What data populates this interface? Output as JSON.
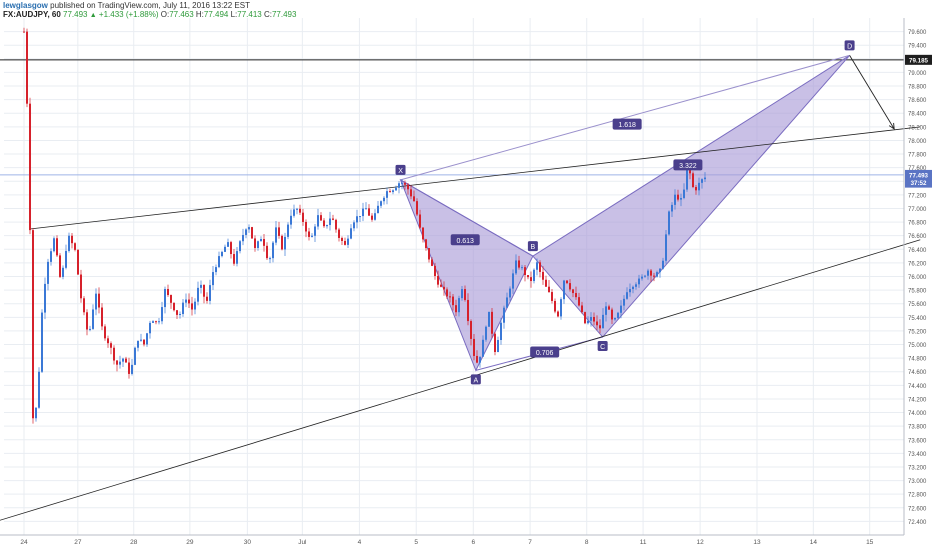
{
  "header": {
    "author": "lewglasgow",
    "published": "published on TradingView.com, July 11, 2016 13:22 EST",
    "symbol": "FX:AUDJPY, 60",
    "last": "77.493",
    "change": "+1.433 (+1.88%)",
    "open_label": "O:",
    "open": "77.463",
    "high_label": "H:",
    "high": "77.494",
    "low_label": "L:",
    "low": "77.413",
    "close_label": "C:",
    "close": "77.493",
    "change_arrow": "up-triangle-icon"
  },
  "colors": {
    "up_candle": "#3a78d6",
    "down_candle": "#d6212b",
    "pattern_fill": "#a89ad6",
    "pattern_label_bg": "#4a3f8c",
    "price_label_dark": "#1e1e1e",
    "price_label_blue": "#5a74c4",
    "grid": "#e9edf2",
    "trendline": "#222222"
  },
  "chart_data": {
    "type": "candlestick",
    "instrument": "AUDJPY",
    "interval": "60",
    "ylim": [
      72.2,
      79.8
    ],
    "y_ticks": [
      72.4,
      72.6,
      72.8,
      73.0,
      73.2,
      73.4,
      73.6,
      73.8,
      74.0,
      74.2,
      74.4,
      74.6,
      74.8,
      75.0,
      75.2,
      75.4,
      75.6,
      75.8,
      76.0,
      76.2,
      76.4,
      76.6,
      76.8,
      77.0,
      77.2,
      77.4,
      77.6,
      77.8,
      78.0,
      78.2,
      78.4,
      78.6,
      78.8,
      79.0,
      79.2,
      79.4,
      79.6
    ],
    "y_tick_labels": [
      "72.400",
      "72.600",
      "72.800",
      "73.000",
      "73.200",
      "73.400",
      "73.600",
      "73.800",
      "74.000",
      "74.200",
      "74.400",
      "74.600",
      "74.800",
      "75.000",
      "75.200",
      "75.400",
      "75.600",
      "75.800",
      "76.000",
      "76.200",
      "76.400",
      "76.600",
      "76.800",
      "77.000",
      "77.200",
      "77.400",
      "77.600",
      "77.800",
      "78.000",
      "78.200",
      "78.400",
      "78.600",
      "78.800",
      "79.000",
      "79.200",
      "79.400",
      "79.600"
    ],
    "x_ticks": [
      {
        "label": "24",
        "t": 0
      },
      {
        "label": "27",
        "t": 2.33
      },
      {
        "label": "28",
        "t": 4.75
      },
      {
        "label": "29",
        "t": 7.18
      },
      {
        "label": "30",
        "t": 9.67
      },
      {
        "label": "Jul",
        "t": 12.05
      },
      {
        "label": "4",
        "t": 14.52
      },
      {
        "label": "5",
        "t": 16.98
      },
      {
        "label": "6",
        "t": 19.45
      },
      {
        "label": "7",
        "t": 21.91
      },
      {
        "label": "8",
        "t": 24.36
      },
      {
        "label": "11",
        "t": 26.8
      },
      {
        "label": "12",
        "t": 29.27
      },
      {
        "label": "13",
        "t": 31.73
      },
      {
        "label": "14",
        "t": 34.17
      },
      {
        "label": "15",
        "t": 36.61
      }
    ],
    "price_labels": [
      {
        "text": "79.185",
        "value": 79.185,
        "style": "dark"
      },
      {
        "text": "77.493",
        "value": 77.493,
        "style": "blue"
      },
      {
        "text": "37:52",
        "value": 77.38,
        "style": "blue"
      }
    ],
    "horizontal_lines": [
      {
        "value": 79.185,
        "color": "#222222"
      },
      {
        "value": 77.493,
        "color": "#9fb4e6"
      }
    ],
    "pattern": {
      "name": "bearish bat / gartley",
      "points": [
        {
          "label": "X",
          "t": 16.3,
          "price": 77.42
        },
        {
          "label": "A",
          "t": 19.56,
          "price": 74.62
        },
        {
          "label": "B",
          "t": 22.03,
          "price": 76.3
        },
        {
          "label": "C",
          "t": 25.05,
          "price": 75.11
        },
        {
          "label": "D",
          "t": 35.74,
          "price": 79.25
        }
      ],
      "ratios": [
        {
          "text": "0.613",
          "t": 19.1,
          "price": 76.54
        },
        {
          "text": "0.706",
          "t": 22.54,
          "price": 74.89
        },
        {
          "text": "3.322",
          "t": 28.74,
          "price": 77.64
        },
        {
          "text": "1.618",
          "t": 26.11,
          "price": 78.24
        }
      ]
    },
    "trendlines": [
      {
        "from": {
          "t": 0.3,
          "price": 76.7
        },
        "to": {
          "t": 38.8,
          "price": 78.2
        }
      },
      {
        "from": {
          "t": -1.2,
          "price": 72.4
        },
        "to": {
          "t": 38.8,
          "price": 76.54
        }
      }
    ],
    "projection": {
      "from": {
        "t": 35.74,
        "price": 79.25
      },
      "to": {
        "t": 37.67,
        "price": 78.17
      }
    },
    "candle_path": [
      [
        0,
        79.6
      ],
      [
        0.2,
        78.0
      ],
      [
        0.4,
        73.7
      ],
      [
        0.6,
        74.3
      ],
      [
        0.8,
        75.6
      ],
      [
        1.0,
        76.2
      ],
      [
        1.3,
        76.55
      ],
      [
        1.6,
        75.9
      ],
      [
        1.9,
        76.6
      ],
      [
        2.2,
        76.4
      ],
      [
        2.5,
        75.6
      ],
      [
        2.8,
        75.1
      ],
      [
        3.1,
        75.8
      ],
      [
        3.4,
        75.2
      ],
      [
        3.7,
        75.0
      ],
      [
        4.0,
        74.7
      ],
      [
        4.3,
        74.8
      ],
      [
        4.6,
        74.55
      ],
      [
        4.9,
        75.1
      ],
      [
        5.2,
        75.0
      ],
      [
        5.5,
        75.4
      ],
      [
        5.8,
        75.3
      ],
      [
        6.1,
        75.8
      ],
      [
        6.4,
        75.6
      ],
      [
        6.7,
        75.4
      ],
      [
        7.0,
        75.7
      ],
      [
        7.3,
        75.5
      ],
      [
        7.6,
        75.9
      ],
      [
        7.9,
        75.6
      ],
      [
        8.2,
        76.1
      ],
      [
        8.5,
        76.3
      ],
      [
        8.8,
        76.5
      ],
      [
        9.1,
        76.2
      ],
      [
        9.4,
        76.55
      ],
      [
        9.7,
        76.8
      ],
      [
        10.0,
        76.4
      ],
      [
        10.3,
        76.6
      ],
      [
        10.6,
        76.2
      ],
      [
        10.9,
        76.7
      ],
      [
        11.2,
        76.4
      ],
      [
        11.5,
        76.9
      ],
      [
        11.8,
        77.0
      ],
      [
        12.1,
        76.8
      ],
      [
        12.4,
        76.5
      ],
      [
        12.7,
        76.9
      ],
      [
        13.0,
        76.7
      ],
      [
        13.3,
        76.9
      ],
      [
        13.6,
        76.6
      ],
      [
        13.9,
        76.45
      ],
      [
        14.2,
        76.8
      ],
      [
        14.5,
        76.9
      ],
      [
        14.8,
        77.0
      ],
      [
        15.1,
        76.8
      ],
      [
        15.4,
        77.1
      ],
      [
        15.7,
        77.25
      ],
      [
        16.0,
        77.3
      ],
      [
        16.3,
        77.4
      ],
      [
        16.6,
        77.3
      ],
      [
        16.9,
        77.1
      ],
      [
        17.2,
        76.6
      ],
      [
        17.5,
        76.3
      ],
      [
        17.8,
        76.0
      ],
      [
        18.1,
        75.8
      ],
      [
        18.4,
        75.7
      ],
      [
        18.7,
        75.5
      ],
      [
        19.0,
        75.9
      ],
      [
        19.3,
        75.2
      ],
      [
        19.56,
        74.7
      ],
      [
        19.8,
        74.9
      ],
      [
        20.1,
        75.5
      ],
      [
        20.4,
        74.9
      ],
      [
        20.7,
        75.4
      ],
      [
        21.0,
        75.8
      ],
      [
        21.3,
        76.2
      ],
      [
        21.6,
        76.1
      ],
      [
        21.9,
        75.9
      ],
      [
        22.2,
        76.2
      ],
      [
        22.5,
        75.9
      ],
      [
        22.8,
        75.7
      ],
      [
        23.1,
        75.4
      ],
      [
        23.4,
        76.0
      ],
      [
        23.7,
        75.8
      ],
      [
        24.0,
        75.6
      ],
      [
        24.3,
        75.3
      ],
      [
        24.6,
        75.4
      ],
      [
        24.9,
        75.2
      ],
      [
        25.2,
        75.6
      ],
      [
        25.5,
        75.3
      ],
      [
        25.8,
        75.5
      ],
      [
        26.1,
        75.8
      ],
      [
        26.4,
        75.9
      ],
      [
        26.7,
        75.95
      ],
      [
        27.0,
        76.1
      ],
      [
        27.3,
        76.0
      ],
      [
        27.6,
        76.1
      ],
      [
        27.9,
        76.9
      ],
      [
        28.2,
        77.2
      ],
      [
        28.5,
        77.1
      ],
      [
        28.74,
        77.65
      ],
      [
        29.0,
        77.25
      ],
      [
        29.3,
        77.4
      ],
      [
        29.6,
        77.49
      ]
    ]
  }
}
